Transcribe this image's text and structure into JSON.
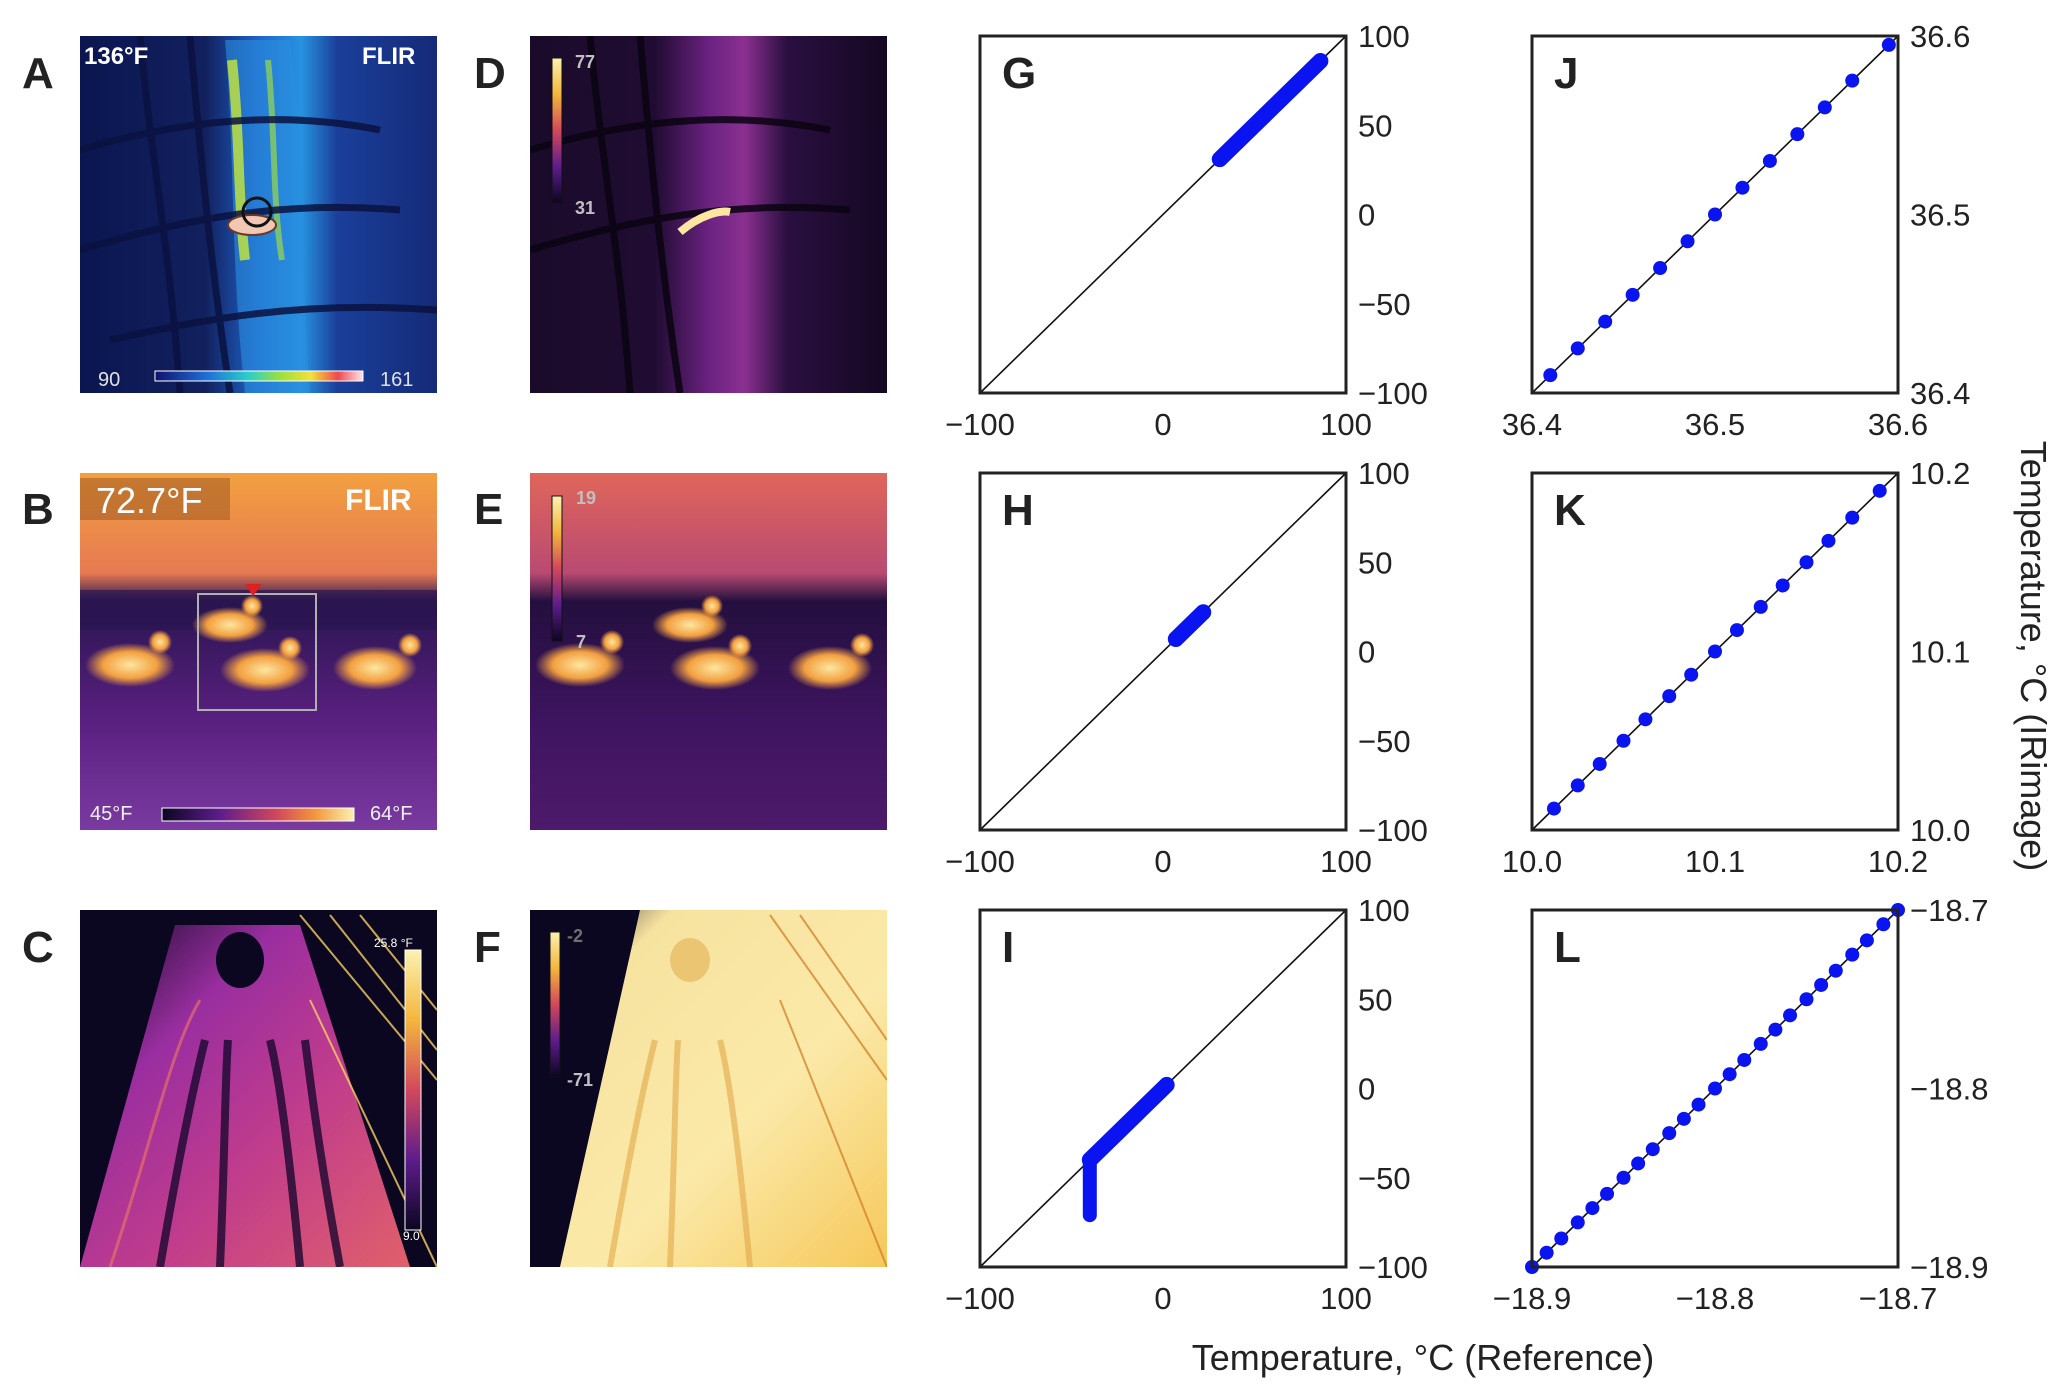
{
  "colors": {
    "points": "#0a14f0",
    "axes": "#222222",
    "flir_blue_bg": "#0d1a5e",
    "inferno_dark": "#0c0720",
    "inferno_orange": "#f4973c",
    "inferno_yellow": "#fbe8a6"
  },
  "panels": [
    {
      "label": "A",
      "type": "thermal-image",
      "palette": "flir-rainbow",
      "overlay": {
        "top_left": "136°F",
        "brand": "FLIR",
        "scale_min": "90",
        "scale_max": "161"
      }
    },
    {
      "label": "B",
      "type": "thermal-image",
      "palette": "flir-iron",
      "overlay": {
        "top_left": "72.7°F",
        "brand": "FLIR",
        "scale_min": "45°F",
        "scale_max": "64°F"
      }
    },
    {
      "label": "C",
      "type": "thermal-image",
      "palette": "inferno",
      "overlay": {
        "scale_max": "25.8 °F",
        "scale_min": "9.0"
      }
    },
    {
      "label": "D",
      "type": "thermal-image",
      "palette": "inferno",
      "overlay": {
        "scale_max": "77",
        "scale_min": "31"
      }
    },
    {
      "label": "E",
      "type": "thermal-image",
      "palette": "inferno",
      "overlay": {
        "scale_max": "19",
        "scale_min": "7"
      }
    },
    {
      "label": "F",
      "type": "thermal-image",
      "palette": "inferno",
      "overlay": {
        "scale_max": "-2",
        "scale_min": "-71"
      }
    }
  ],
  "chart_data": [
    {
      "panel": "G",
      "type": "scatter",
      "xlim": [
        -100,
        100
      ],
      "ylim": [
        -100,
        100
      ],
      "xticks": [
        "−100",
        "0",
        "100"
      ],
      "yticks": [
        "100",
        "50",
        "0",
        "−50",
        "−100"
      ],
      "identity_line": true,
      "x_range": [
        31,
        86
      ],
      "y_range": [
        31,
        86
      ],
      "dense": true
    },
    {
      "panel": "H",
      "type": "scatter",
      "xlim": [
        -100,
        100
      ],
      "ylim": [
        -100,
        100
      ],
      "xticks": [
        "−100",
        "0",
        "100"
      ],
      "yticks": [
        "100",
        "50",
        "0",
        "−50",
        "−100"
      ],
      "identity_line": true,
      "x_range": [
        7,
        22
      ],
      "y_range": [
        7,
        22
      ],
      "dense": true
    },
    {
      "panel": "I",
      "type": "scatter",
      "xlim": [
        -100,
        100
      ],
      "ylim": [
        -100,
        100
      ],
      "xticks": [
        "−100",
        "0",
        "100"
      ],
      "yticks": [
        "100",
        "50",
        "0",
        "−50",
        "−100"
      ],
      "identity_line": true,
      "x_range": [
        -40,
        2
      ],
      "y_range": [
        -40,
        2
      ],
      "dense": true,
      "vertical_segment": {
        "x": -40,
        "y_from": -71,
        "y_to": -40
      }
    },
    {
      "panel": "J",
      "type": "scatter",
      "xlim": [
        36.4,
        36.6
      ],
      "ylim": [
        36.4,
        36.6
      ],
      "xticks": [
        "36.4",
        "36.5",
        "36.6"
      ],
      "yticks": [
        "36.6",
        "36.5",
        "36.4"
      ],
      "identity_line": true,
      "points": [
        36.41,
        36.425,
        36.44,
        36.455,
        36.47,
        36.485,
        36.5,
        36.515,
        36.53,
        36.545,
        36.56,
        36.575,
        36.595
      ]
    },
    {
      "panel": "K",
      "type": "scatter",
      "xlim": [
        10.0,
        10.2
      ],
      "ylim": [
        10.0,
        10.2
      ],
      "xticks": [
        "10.0",
        "10.1",
        "10.2"
      ],
      "yticks": [
        "10.2",
        "10.1",
        "10.0"
      ],
      "identity_line": true,
      "points": [
        10.012,
        10.025,
        10.037,
        10.05,
        10.062,
        10.075,
        10.087,
        10.1,
        10.112,
        10.125,
        10.137,
        10.15,
        10.162,
        10.175,
        10.19
      ]
    },
    {
      "panel": "L",
      "type": "scatter",
      "xlim": [
        -18.9,
        -18.7
      ],
      "ylim": [
        -18.9,
        -18.7
      ],
      "xticks": [
        "−18.9",
        "−18.8",
        "−18.7"
      ],
      "yticks": [
        "−18.7",
        "−18.8",
        "−18.9"
      ],
      "identity_line": true,
      "points": [
        -18.9,
        -18.892,
        -18.884,
        -18.875,
        -18.867,
        -18.859,
        -18.85,
        -18.842,
        -18.834,
        -18.825,
        -18.817,
        -18.809,
        -18.8,
        -18.792,
        -18.784,
        -18.775,
        -18.767,
        -18.759,
        -18.75,
        -18.742,
        -18.734,
        -18.725,
        -18.717,
        -18.708,
        -18.7
      ]
    }
  ],
  "axis_labels": {
    "x": "Temperature, °C (Reference)",
    "y": "Temperature, °C (IRimage)"
  }
}
